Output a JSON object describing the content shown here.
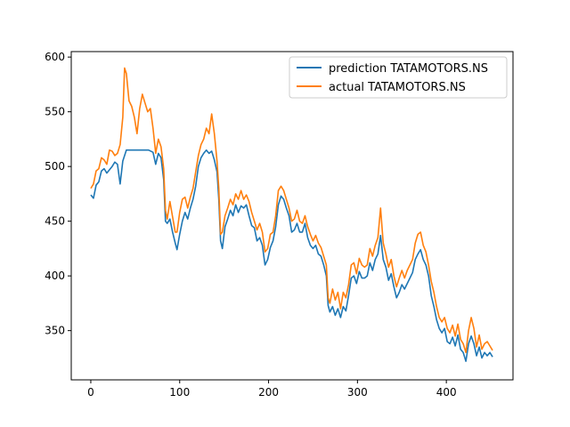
{
  "chart_data": {
    "type": "line",
    "title": "",
    "xlabel": "",
    "ylabel": "",
    "xlim": [
      -22,
      475
    ],
    "ylim": [
      305,
      605
    ],
    "xticks": [
      0,
      100,
      200,
      300,
      400
    ],
    "yticks": [
      350,
      400,
      450,
      500,
      550,
      600
    ],
    "grid": false,
    "legend_position": "top-right",
    "series": [
      {
        "name": "prediction TATAMOTORS.NS",
        "color": "#1f77b4",
        "points": [
          [
            0,
            474
          ],
          [
            3,
            471
          ],
          [
            6,
            483
          ],
          [
            9,
            486
          ],
          [
            12,
            496
          ],
          [
            15,
            498
          ],
          [
            18,
            494
          ],
          [
            21,
            497
          ],
          [
            24,
            500
          ],
          [
            27,
            504
          ],
          [
            30,
            502
          ],
          [
            33,
            484
          ],
          [
            36,
            505
          ],
          [
            40,
            515
          ],
          [
            45,
            515
          ],
          [
            50,
            515
          ],
          [
            55,
            515
          ],
          [
            60,
            515
          ],
          [
            65,
            515
          ],
          [
            70,
            513
          ],
          [
            73,
            502
          ],
          [
            76,
            512
          ],
          [
            79,
            508
          ],
          [
            82,
            488
          ],
          [
            84,
            450
          ],
          [
            86,
            448
          ],
          [
            89,
            452
          ],
          [
            92,
            440
          ],
          [
            95,
            430
          ],
          [
            97,
            424
          ],
          [
            100,
            438
          ],
          [
            103,
            450
          ],
          [
            106,
            458
          ],
          [
            109,
            452
          ],
          [
            112,
            462
          ],
          [
            115,
            470
          ],
          [
            118,
            482
          ],
          [
            121,
            500
          ],
          [
            124,
            508
          ],
          [
            127,
            512
          ],
          [
            130,
            515
          ],
          [
            133,
            512
          ],
          [
            136,
            514
          ],
          [
            139,
            506
          ],
          [
            142,
            495
          ],
          [
            144,
            470
          ],
          [
            146,
            432
          ],
          [
            148,
            425
          ],
          [
            151,
            445
          ],
          [
            154,
            452
          ],
          [
            157,
            460
          ],
          [
            160,
            455
          ],
          [
            163,
            465
          ],
          [
            166,
            458
          ],
          [
            169,
            464
          ],
          [
            172,
            462
          ],
          [
            175,
            465
          ],
          [
            178,
            455
          ],
          [
            181,
            446
          ],
          [
            184,
            444
          ],
          [
            187,
            432
          ],
          [
            190,
            435
          ],
          [
            193,
            428
          ],
          [
            196,
            410
          ],
          [
            199,
            415
          ],
          [
            202,
            426
          ],
          [
            205,
            432
          ],
          [
            208,
            445
          ],
          [
            211,
            465
          ],
          [
            214,
            473
          ],
          [
            217,
            470
          ],
          [
            220,
            462
          ],
          [
            223,
            455
          ],
          [
            226,
            440
          ],
          [
            229,
            442
          ],
          [
            232,
            448
          ],
          [
            235,
            440
          ],
          [
            238,
            440
          ],
          [
            241,
            448
          ],
          [
            244,
            435
          ],
          [
            247,
            428
          ],
          [
            250,
            425
          ],
          [
            253,
            428
          ],
          [
            256,
            420
          ],
          [
            259,
            418
          ],
          [
            262,
            410
          ],
          [
            265,
            400
          ],
          [
            267,
            373
          ],
          [
            269,
            367
          ],
          [
            272,
            372
          ],
          [
            275,
            364
          ],
          [
            278,
            370
          ],
          [
            281,
            362
          ],
          [
            284,
            372
          ],
          [
            287,
            368
          ],
          [
            290,
            382
          ],
          [
            293,
            398
          ],
          [
            296,
            400
          ],
          [
            299,
            393
          ],
          [
            302,
            404
          ],
          [
            305,
            398
          ],
          [
            308,
            398
          ],
          [
            311,
            400
          ],
          [
            314,
            412
          ],
          [
            317,
            405
          ],
          [
            320,
            415
          ],
          [
            323,
            420
          ],
          [
            326,
            437
          ],
          [
            329,
            415
          ],
          [
            332,
            408
          ],
          [
            335,
            396
          ],
          [
            338,
            402
          ],
          [
            341,
            390
          ],
          [
            344,
            380
          ],
          [
            347,
            385
          ],
          [
            350,
            392
          ],
          [
            353,
            388
          ],
          [
            356,
            393
          ],
          [
            359,
            398
          ],
          [
            362,
            403
          ],
          [
            365,
            415
          ],
          [
            368,
            420
          ],
          [
            371,
            424
          ],
          [
            374,
            415
          ],
          [
            377,
            410
          ],
          [
            380,
            400
          ],
          [
            383,
            382
          ],
          [
            386,
            372
          ],
          [
            389,
            360
          ],
          [
            392,
            352
          ],
          [
            395,
            348
          ],
          [
            398,
            352
          ],
          [
            401,
            340
          ],
          [
            404,
            338
          ],
          [
            407,
            344
          ],
          [
            410,
            336
          ],
          [
            413,
            346
          ],
          [
            416,
            333
          ],
          [
            419,
            330
          ],
          [
            422,
            322
          ],
          [
            425,
            338
          ],
          [
            428,
            345
          ],
          [
            431,
            338
          ],
          [
            434,
            327
          ],
          [
            437,
            335
          ],
          [
            440,
            325
          ],
          [
            443,
            330
          ],
          [
            446,
            327
          ],
          [
            449,
            330
          ],
          [
            452,
            326
          ]
        ]
      },
      {
        "name": "actual TATAMOTORS.NS",
        "color": "#ff7f0e",
        "points": [
          [
            0,
            480
          ],
          [
            3,
            484
          ],
          [
            6,
            496
          ],
          [
            9,
            498
          ],
          [
            12,
            508
          ],
          [
            15,
            506
          ],
          [
            18,
            502
          ],
          [
            21,
            515
          ],
          [
            24,
            514
          ],
          [
            27,
            510
          ],
          [
            30,
            512
          ],
          [
            33,
            520
          ],
          [
            36,
            545
          ],
          [
            38,
            590
          ],
          [
            40,
            585
          ],
          [
            43,
            560
          ],
          [
            46,
            555
          ],
          [
            49,
            545
          ],
          [
            52,
            530
          ],
          [
            55,
            553
          ],
          [
            58,
            566
          ],
          [
            61,
            558
          ],
          [
            64,
            550
          ],
          [
            67,
            553
          ],
          [
            70,
            535
          ],
          [
            73,
            512
          ],
          [
            76,
            525
          ],
          [
            79,
            518
          ],
          [
            82,
            498
          ],
          [
            84,
            460
          ],
          [
            86,
            452
          ],
          [
            89,
            468
          ],
          [
            92,
            454
          ],
          [
            95,
            440
          ],
          [
            97,
            440
          ],
          [
            100,
            458
          ],
          [
            103,
            470
          ],
          [
            106,
            472
          ],
          [
            109,
            462
          ],
          [
            112,
            472
          ],
          [
            115,
            480
          ],
          [
            118,
            495
          ],
          [
            121,
            510
          ],
          [
            124,
            520
          ],
          [
            127,
            525
          ],
          [
            130,
            535
          ],
          [
            133,
            530
          ],
          [
            136,
            548
          ],
          [
            139,
            530
          ],
          [
            142,
            505
          ],
          [
            144,
            480
          ],
          [
            146,
            438
          ],
          [
            148,
            440
          ],
          [
            151,
            455
          ],
          [
            154,
            462
          ],
          [
            157,
            470
          ],
          [
            160,
            465
          ],
          [
            163,
            475
          ],
          [
            166,
            470
          ],
          [
            169,
            478
          ],
          [
            172,
            470
          ],
          [
            175,
            474
          ],
          [
            178,
            468
          ],
          [
            181,
            458
          ],
          [
            184,
            450
          ],
          [
            187,
            442
          ],
          [
            190,
            448
          ],
          [
            193,
            440
          ],
          [
            196,
            422
          ],
          [
            199,
            425
          ],
          [
            202,
            438
          ],
          [
            205,
            440
          ],
          [
            208,
            455
          ],
          [
            211,
            478
          ],
          [
            214,
            482
          ],
          [
            217,
            478
          ],
          [
            220,
            470
          ],
          [
            223,
            462
          ],
          [
            226,
            450
          ],
          [
            229,
            452
          ],
          [
            232,
            460
          ],
          [
            235,
            450
          ],
          [
            238,
            448
          ],
          [
            241,
            455
          ],
          [
            244,
            445
          ],
          [
            247,
            438
          ],
          [
            250,
            432
          ],
          [
            253,
            437
          ],
          [
            256,
            430
          ],
          [
            259,
            426
          ],
          [
            262,
            418
          ],
          [
            265,
            410
          ],
          [
            267,
            380
          ],
          [
            269,
            375
          ],
          [
            272,
            388
          ],
          [
            275,
            378
          ],
          [
            278,
            385
          ],
          [
            281,
            370
          ],
          [
            284,
            385
          ],
          [
            287,
            380
          ],
          [
            290,
            392
          ],
          [
            293,
            410
          ],
          [
            296,
            412
          ],
          [
            299,
            402
          ],
          [
            302,
            416
          ],
          [
            305,
            410
          ],
          [
            308,
            408
          ],
          [
            311,
            410
          ],
          [
            314,
            425
          ],
          [
            317,
            418
          ],
          [
            320,
            428
          ],
          [
            323,
            435
          ],
          [
            326,
            462
          ],
          [
            329,
            430
          ],
          [
            332,
            420
          ],
          [
            335,
            408
          ],
          [
            338,
            415
          ],
          [
            341,
            400
          ],
          [
            344,
            390
          ],
          [
            347,
            398
          ],
          [
            350,
            405
          ],
          [
            353,
            398
          ],
          [
            356,
            405
          ],
          [
            359,
            410
          ],
          [
            362,
            415
          ],
          [
            365,
            430
          ],
          [
            368,
            438
          ],
          [
            371,
            440
          ],
          [
            374,
            428
          ],
          [
            377,
            422
          ],
          [
            380,
            410
          ],
          [
            383,
            395
          ],
          [
            386,
            385
          ],
          [
            389,
            372
          ],
          [
            392,
            362
          ],
          [
            395,
            358
          ],
          [
            398,
            362
          ],
          [
            401,
            352
          ],
          [
            404,
            348
          ],
          [
            407,
            355
          ],
          [
            410,
            345
          ],
          [
            413,
            356
          ],
          [
            416,
            342
          ],
          [
            419,
            338
          ],
          [
            422,
            330
          ],
          [
            425,
            350
          ],
          [
            428,
            362
          ],
          [
            431,
            352
          ],
          [
            434,
            335
          ],
          [
            437,
            346
          ],
          [
            440,
            333
          ],
          [
            443,
            338
          ],
          [
            446,
            340
          ],
          [
            449,
            336
          ],
          [
            452,
            332
          ]
        ]
      }
    ]
  }
}
